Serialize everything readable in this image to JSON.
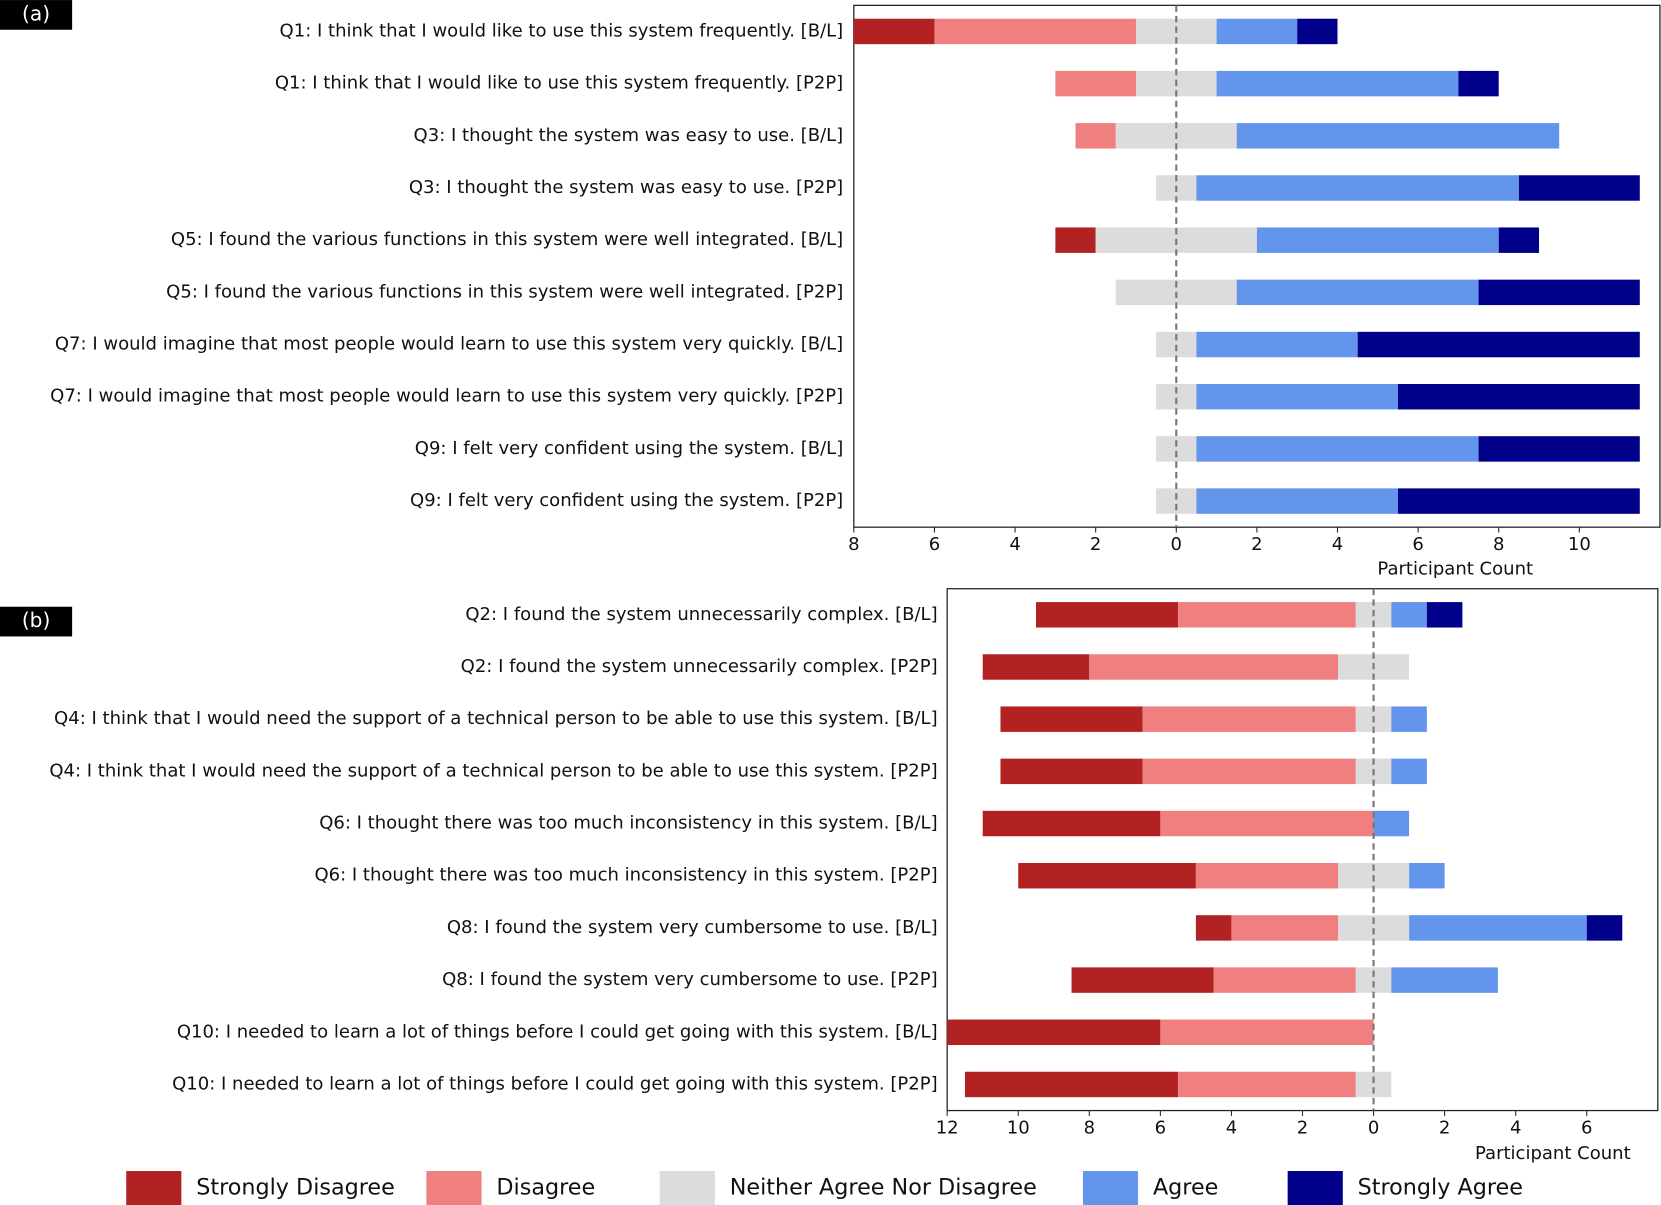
{
  "chart_data": [
    {
      "type": "diverging_bar",
      "panel_label": "(a)",
      "xlabel": "Participant Count",
      "categories": [
        "Q1: I think that I would like to use this system frequently. [B/L]",
        "Q1: I think that I would like to use this system frequently. [P2P]",
        "Q3: I thought the system was easy to use. [B/L]",
        "Q3: I thought the system was easy to use. [P2P]",
        "Q5: I found the various functions in this system were well integrated. [B/L]",
        "Q5: I found the various functions in this system were well integrated. [P2P]",
        "Q7: I would imagine that most people would learn to use this system very quickly. [B/L]",
        "Q7: I would imagine that most people would learn to use this system very quickly. [P2P]",
        "Q9: I felt very confident using the system. [B/L]",
        "Q9: I felt very confident using the system. [P2P]"
      ],
      "series": [
        {
          "values": [
            2,
            0,
            0,
            0,
            1,
            0,
            0,
            0,
            0,
            0
          ]
        },
        {
          "values": [
            5,
            2,
            1,
            0,
            0,
            0,
            0,
            0,
            0,
            0
          ]
        },
        {
          "values": [
            2,
            2,
            3,
            1,
            4,
            3,
            1,
            1,
            1,
            1
          ]
        },
        {
          "values": [
            2,
            6,
            8,
            8,
            6,
            6,
            4,
            5,
            7,
            5
          ]
        },
        {
          "values": [
            1,
            1,
            0,
            3,
            1,
            4,
            7,
            6,
            4,
            6
          ]
        }
      ],
      "xlim": [
        -8,
        12
      ],
      "xticks": [
        {
          "value": -8,
          "label": "8"
        },
        {
          "value": -6,
          "label": "6"
        },
        {
          "value": -4,
          "label": "4"
        },
        {
          "value": -2,
          "label": "2"
        },
        0,
        2,
        4,
        6,
        8,
        10
      ]
    },
    {
      "type": "diverging_bar",
      "panel_label": "(b)",
      "xlabel": "Participant Count",
      "categories": [
        "Q2: I found the system unnecessarily complex. [B/L]",
        "Q2: I found the system unnecessarily complex. [P2P]",
        "Q4: I think that I would need the support of a technical person to be able to use this system. [B/L]",
        "Q4: I think that I would need the support of a technical person to be able to use this system. [P2P]",
        "Q6: I thought there was too much inconsistency in this system. [B/L]",
        "Q6: I thought there was too much inconsistency in this system. [P2P]",
        "Q8: I found the system very cumbersome to use. [B/L]",
        "Q8: I found the system very cumbersome to use. [P2P]",
        "Q10: I needed to learn a lot of things before I could get going with this system. [B/L]",
        "Q10: I needed to learn a lot of things before I could get going with this system. [P2P]"
      ],
      "series": [
        {
          "values": [
            4,
            3,
            4,
            4,
            5,
            5,
            1,
            4,
            6,
            6
          ]
        },
        {
          "values": [
            5,
            7,
            6,
            6,
            6,
            4,
            3,
            4,
            6,
            5
          ]
        },
        {
          "values": [
            1,
            2,
            1,
            1,
            0,
            2,
            2,
            1,
            0,
            1
          ]
        },
        {
          "values": [
            1,
            0,
            1,
            1,
            1,
            1,
            5,
            3,
            0,
            0
          ]
        },
        {
          "values": [
            1,
            0,
            0,
            0,
            0,
            0,
            1,
            0,
            0,
            0
          ]
        }
      ],
      "xlim": [
        -12,
        8
      ],
      "xticks": [
        {
          "value": -12,
          "label": "12"
        },
        {
          "value": -10,
          "label": "10"
        },
        {
          "value": -8,
          "label": "8"
        },
        {
          "value": -6,
          "label": "6"
        },
        {
          "value": -4,
          "label": "4"
        },
        {
          "value": -2,
          "label": "2"
        },
        0,
        2,
        4,
        6
      ]
    }
  ],
  "legend": [
    {
      "name": "Strongly Disagree",
      "color": "#b22222"
    },
    {
      "name": "Disagree",
      "color": "#f08080"
    },
    {
      "name": "Neither Agree Nor Disagree",
      "color": "#dcdcdc"
    },
    {
      "name": "Agree",
      "color": "#6495ed"
    },
    {
      "name": "Strongly Agree",
      "color": "#00008b"
    }
  ]
}
